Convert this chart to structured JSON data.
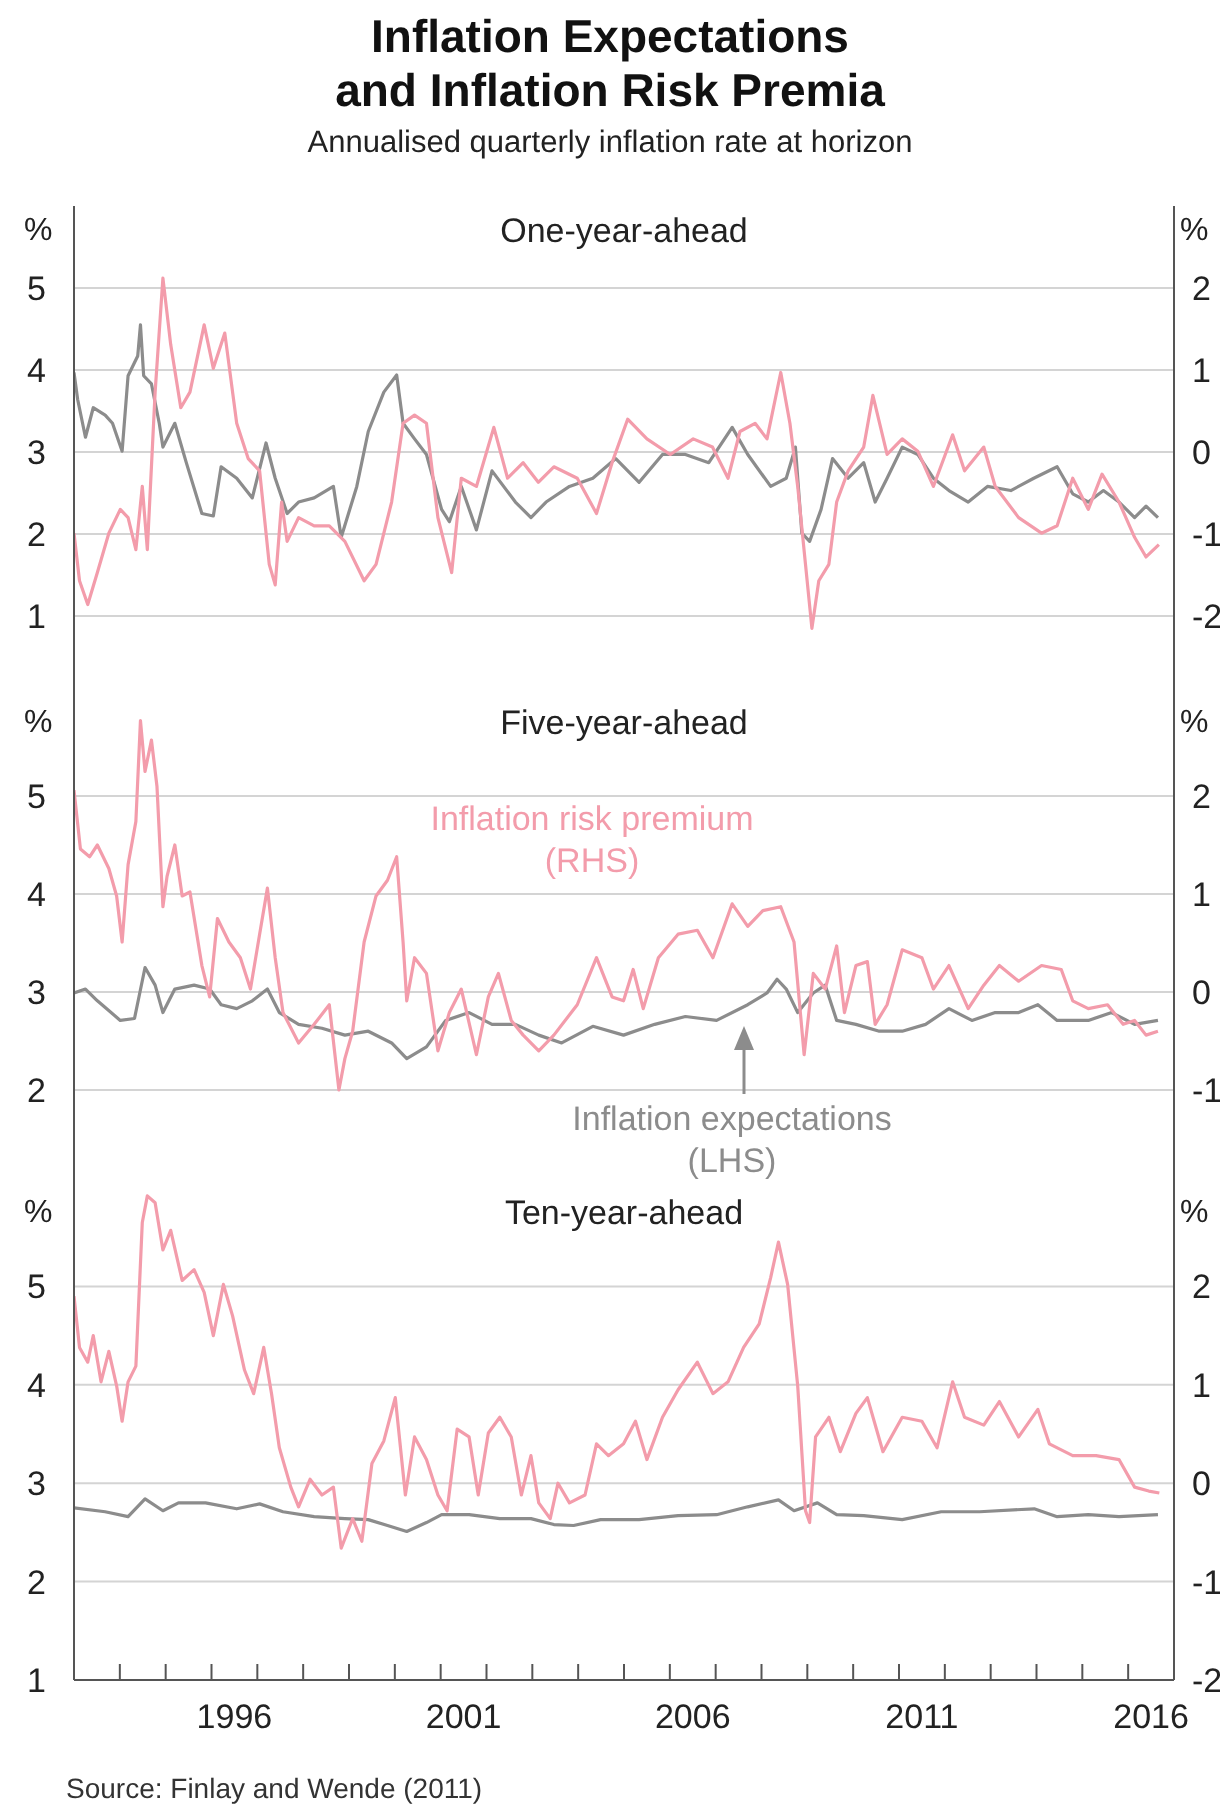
{
  "chart_data": [
    {
      "type": "line",
      "title": "Inflation Expectations and Inflation Risk Premia",
      "subtitle": "Annualised quarterly inflation rate at horizon",
      "annotations": [
        "One-year-ahead"
      ],
      "ylabel": "%",
      "y2label": "%",
      "xlim": [
        1993,
        2017
      ],
      "ylim": [
        0,
        6
      ],
      "yticks": [
        1,
        2,
        3,
        4,
        5
      ],
      "y2lim": [
        -3,
        3
      ],
      "y2ticks": [
        -2,
        -1,
        0,
        1,
        2
      ],
      "grid": "y",
      "tick_labels": "y",
      "series": [
        {
          "color": "#8c8c8c",
          "axis": "y",
          "x": [
            1993.0,
            1993.08,
            1993.25,
            1993.42,
            1993.68,
            1993.84,
            1994.05,
            1994.18,
            1994.39,
            1994.45,
            1994.52,
            1994.69,
            1994.86,
            1994.94,
            1995.2,
            1995.45,
            1995.79,
            1996.04,
            1996.21,
            1996.55,
            1996.89,
            1997.19,
            1997.39,
            1997.65,
            1997.9,
            1998.24,
            1998.66,
            1998.83,
            1999.17,
            1999.42,
            1999.76,
            2000.04,
            2000.18,
            2000.43,
            2000.69,
            2001.02,
            2001.19,
            2001.45,
            2001.78,
            2002.12,
            2002.63,
            2002.97,
            2003.3,
            2003.81,
            2004.32,
            2004.82,
            2005.33,
            2005.84,
            2006.34,
            2006.85,
            2007.36,
            2007.7,
            2008.2,
            2008.54,
            2008.74,
            2008.88,
            2009.05,
            2009.3,
            2009.55,
            2009.89,
            2010.23,
            2010.48,
            2010.74,
            2011.07,
            2011.41,
            2011.75,
            2012.09,
            2012.51,
            2012.93,
            2013.44,
            2013.94,
            2014.45,
            2014.79,
            2015.13,
            2015.46,
            2015.8,
            2016.14,
            2016.39,
            2016.65
          ],
          "values": [
            3.97,
            3.64,
            3.18,
            3.54,
            3.45,
            3.35,
            3.01,
            3.93,
            4.17,
            4.55,
            3.93,
            3.83,
            3.35,
            3.06,
            3.35,
            2.87,
            2.25,
            2.22,
            2.82,
            2.68,
            2.44,
            3.11,
            2.68,
            2.25,
            2.39,
            2.44,
            2.58,
            1.96,
            2.58,
            3.25,
            3.73,
            3.94,
            3.35,
            3.16,
            2.97,
            2.3,
            2.15,
            2.58,
            2.05,
            2.77,
            2.39,
            2.2,
            2.39,
            2.58,
            2.68,
            2.92,
            2.63,
            2.97,
            2.97,
            2.87,
            3.3,
            2.97,
            2.58,
            2.68,
            3.06,
            2.01,
            1.91,
            2.3,
            2.92,
            2.68,
            2.87,
            2.39,
            2.68,
            3.06,
            2.97,
            2.68,
            2.53,
            2.39,
            2.58,
            2.53,
            2.68,
            2.82,
            2.49,
            2.39,
            2.53,
            2.39,
            2.2,
            2.34,
            2.2
          ]
        },
        {
          "color": "#f39cab",
          "axis": "y2",
          "x": [
            1993.0,
            1993.12,
            1993.3,
            1993.51,
            1993.76,
            1994.01,
            1994.18,
            1994.35,
            1994.49,
            1994.6,
            1994.77,
            1994.94,
            1995.11,
            1995.33,
            1995.53,
            1995.84,
            1996.04,
            1996.29,
            1996.55,
            1996.8,
            1997.05,
            1997.26,
            1997.39,
            1997.53,
            1997.65,
            1997.9,
            1998.24,
            1998.57,
            1998.91,
            1999.33,
            1999.59,
            1999.93,
            2000.18,
            2000.43,
            2000.69,
            2000.94,
            2001.24,
            2001.45,
            2001.78,
            2002.16,
            2002.46,
            2002.8,
            2003.13,
            2003.47,
            2003.98,
            2004.4,
            2004.74,
            2005.08,
            2005.5,
            2006.01,
            2006.51,
            2006.93,
            2007.27,
            2007.53,
            2007.86,
            2008.12,
            2008.42,
            2008.62,
            2008.79,
            2008.96,
            2009.1,
            2009.25,
            2009.47,
            2009.64,
            2009.89,
            2010.23,
            2010.43,
            2010.74,
            2011.07,
            2011.41,
            2011.75,
            2012.17,
            2012.43,
            2012.85,
            2013.1,
            2013.61,
            2014.11,
            2014.45,
            2014.79,
            2015.13,
            2015.43,
            2015.8,
            2016.14,
            2016.39,
            2016.67
          ],
          "values": [
            -0.99,
            -1.57,
            -1.86,
            -1.47,
            -0.99,
            -0.7,
            -0.8,
            -1.19,
            -0.42,
            -1.19,
            0.73,
            2.12,
            1.31,
            0.54,
            0.73,
            1.55,
            1.02,
            1.45,
            0.35,
            -0.08,
            -0.23,
            -1.37,
            -1.62,
            -0.61,
            -1.09,
            -0.8,
            -0.9,
            -0.9,
            -1.09,
            -1.57,
            -1.37,
            -0.61,
            0.35,
            0.45,
            0.35,
            -0.8,
            -1.47,
            -0.32,
            -0.42,
            0.3,
            -0.32,
            -0.13,
            -0.37,
            -0.18,
            -0.32,
            -0.75,
            -0.13,
            0.4,
            0.16,
            -0.03,
            0.16,
            0.06,
            -0.32,
            0.25,
            0.35,
            0.16,
            0.97,
            0.35,
            -0.42,
            -1.37,
            -2.15,
            -1.57,
            -1.37,
            -0.61,
            -0.23,
            0.06,
            0.69,
            -0.03,
            0.16,
            0.01,
            -0.42,
            0.21,
            -0.23,
            0.06,
            -0.42,
            -0.8,
            -0.99,
            -0.9,
            -0.32,
            -0.7,
            -0.27,
            -0.61,
            -1.04,
            -1.28,
            -1.13
          ]
        }
      ]
    },
    {
      "type": "line",
      "annotations": [
        "Five-year-ahead"
      ],
      "ylabel": "%",
      "y2label": "%",
      "xlim": [
        1993,
        2017
      ],
      "ylim": [
        1,
        6
      ],
      "yticks": [
        2,
        3,
        4,
        5
      ],
      "y2lim": [
        -2,
        3
      ],
      "y2ticks": [
        -1,
        0,
        1,
        2
      ],
      "grid": "y",
      "tick_labels": "y",
      "series": [
        {
          "name": "Inflation expectations (LHS)",
          "color": "#8c8c8c",
          "axis": "y",
          "x": [
            1993.0,
            1993.25,
            1993.51,
            1994.01,
            1994.32,
            1994.55,
            1994.77,
            1994.94,
            1995.2,
            1995.62,
            1995.96,
            1996.21,
            1996.55,
            1996.89,
            1997.22,
            1997.48,
            1997.9,
            1998.41,
            1998.91,
            1999.42,
            1999.93,
            2000.26,
            2000.69,
            2001.11,
            2001.62,
            2002.12,
            2002.63,
            2003.14,
            2003.64,
            2004.32,
            2004.99,
            2005.67,
            2006.34,
            2007.02,
            2007.7,
            2008.12,
            2008.34,
            2008.54,
            2008.79,
            2009.13,
            2009.39,
            2009.64,
            2010.06,
            2010.57,
            2011.07,
            2011.58,
            2012.09,
            2012.59,
            2013.1,
            2013.61,
            2014.03,
            2014.45,
            2015.13,
            2015.64,
            2016.14,
            2016.65
          ],
          "values": [
            2.99,
            3.03,
            2.91,
            2.71,
            2.73,
            3.25,
            3.07,
            2.79,
            3.03,
            3.07,
            3.03,
            2.87,
            2.83,
            2.91,
            3.03,
            2.79,
            2.67,
            2.63,
            2.56,
            2.6,
            2.48,
            2.32,
            2.44,
            2.71,
            2.79,
            2.67,
            2.67,
            2.56,
            2.48,
            2.65,
            2.56,
            2.67,
            2.75,
            2.71,
            2.87,
            2.99,
            3.13,
            3.03,
            2.79,
            2.99,
            3.07,
            2.71,
            2.67,
            2.6,
            2.6,
            2.67,
            2.83,
            2.71,
            2.79,
            2.79,
            2.87,
            2.71,
            2.71,
            2.79,
            2.67,
            2.71
          ]
        },
        {
          "name": "Inflation risk premium (RHS)",
          "color": "#f39cab",
          "axis": "y2",
          "x": [
            1993.0,
            1993.14,
            1993.34,
            1993.51,
            1993.76,
            1993.93,
            1994.05,
            1994.18,
            1994.35,
            1994.45,
            1994.55,
            1994.69,
            1994.81,
            1994.94,
            1995.03,
            1995.2,
            1995.36,
            1995.53,
            1995.79,
            1995.96,
            1996.13,
            1996.38,
            1996.63,
            1996.85,
            1997.05,
            1997.22,
            1997.39,
            1997.56,
            1997.9,
            1998.24,
            1998.57,
            1998.78,
            1998.91,
            1999.08,
            1999.33,
            1999.59,
            1999.84,
            2000.04,
            2000.18,
            2000.26,
            2000.43,
            2000.69,
            2000.94,
            2001.19,
            2001.45,
            2001.78,
            2002.04,
            2002.26,
            2002.54,
            2002.8,
            2003.14,
            2003.47,
            2003.98,
            2004.4,
            2004.74,
            2004.99,
            2005.2,
            2005.42,
            2005.75,
            2006.18,
            2006.6,
            2006.94,
            2007.36,
            2007.7,
            2008.03,
            2008.42,
            2008.71,
            2008.93,
            2009.13,
            2009.39,
            2009.64,
            2009.81,
            2010.06,
            2010.31,
            2010.48,
            2010.74,
            2011.07,
            2011.5,
            2011.75,
            2012.09,
            2012.51,
            2012.85,
            2013.19,
            2013.61,
            2014.11,
            2014.54,
            2014.79,
            2015.13,
            2015.55,
            2015.89,
            2016.14,
            2016.39,
            2016.65
          ],
          "values": [
            2.06,
            1.46,
            1.38,
            1.5,
            1.26,
            0.98,
            0.51,
            1.3,
            1.74,
            2.77,
            2.25,
            2.57,
            2.1,
            0.87,
            1.18,
            1.5,
            0.98,
            1.02,
            0.27,
            -0.05,
            0.75,
            0.51,
            0.35,
            0.03,
            0.59,
            1.06,
            0.35,
            -0.21,
            -0.52,
            -0.33,
            -0.13,
            -1.0,
            -0.68,
            -0.4,
            0.51,
            0.98,
            1.14,
            1.38,
            0.51,
            -0.09,
            0.35,
            0.19,
            -0.6,
            -0.21,
            0.03,
            -0.64,
            -0.05,
            0.19,
            -0.29,
            -0.44,
            -0.6,
            -0.44,
            -0.13,
            0.35,
            -0.05,
            -0.09,
            0.23,
            -0.17,
            0.35,
            0.59,
            0.63,
            0.35,
            0.9,
            0.67,
            0.83,
            0.87,
            0.51,
            -0.64,
            0.19,
            0.03,
            0.47,
            -0.21,
            0.27,
            0.31,
            -0.33,
            -0.13,
            0.43,
            0.35,
            0.03,
            0.27,
            -0.17,
            0.07,
            0.27,
            0.11,
            0.27,
            0.23,
            -0.09,
            -0.17,
            -0.13,
            -0.33,
            -0.29,
            -0.44,
            -0.4
          ]
        }
      ]
    },
    {
      "type": "line",
      "annotations": [
        "Ten-year-ahead",
        "Source: Finlay and Wende (2011)"
      ],
      "ylabel": "%",
      "y2label": "%",
      "xlim": [
        1993,
        2017
      ],
      "xticks": [
        {
          "value": 1994,
          "label": null
        },
        {
          "value": 1995,
          "label": null
        },
        {
          "value": 1996,
          "label": null
        },
        {
          "value": 1996.5,
          "label": "1996"
        },
        {
          "value": 1997,
          "label": null
        },
        {
          "value": 1998,
          "label": null
        },
        {
          "value": 1999,
          "label": null
        },
        {
          "value": 2000,
          "label": null
        },
        {
          "value": 2001,
          "label": null
        },
        {
          "value": 2001.5,
          "label": "2001"
        },
        {
          "value": 2002,
          "label": null
        },
        {
          "value": 2003,
          "label": null
        },
        {
          "value": 2004,
          "label": null
        },
        {
          "value": 2005,
          "label": null
        },
        {
          "value": 2006,
          "label": null
        },
        {
          "value": 2006.5,
          "label": "2006"
        },
        {
          "value": 2007,
          "label": null
        },
        {
          "value": 2008,
          "label": null
        },
        {
          "value": 2009,
          "label": null
        },
        {
          "value": 2010,
          "label": null
        },
        {
          "value": 2011,
          "label": null
        },
        {
          "value": 2011.5,
          "label": "2011"
        },
        {
          "value": 2012,
          "label": null
        },
        {
          "value": 2013,
          "label": null
        },
        {
          "value": 2014,
          "label": null
        },
        {
          "value": 2015,
          "label": null
        },
        {
          "value": 2016,
          "label": null
        },
        {
          "value": 2016.5,
          "label": "2016"
        }
      ],
      "ylim": [
        1,
        6
      ],
      "yticks": [
        1,
        2,
        3,
        4,
        5
      ],
      "y2lim": [
        -2,
        3
      ],
      "y2ticks": [
        -2,
        -1,
        0,
        1,
        2
      ],
      "grid": "y",
      "series": [
        {
          "color": "#8c8c8c",
          "axis": "y",
          "x": [
            1993.0,
            1993.68,
            1994.18,
            1994.55,
            1994.94,
            1995.28,
            1995.87,
            1996.55,
            1997.05,
            1997.56,
            1998.24,
            1998.91,
            1999.42,
            1999.84,
            2000.26,
            2000.69,
            2001.02,
            2001.62,
            2002.29,
            2002.97,
            2003.47,
            2003.9,
            2004.49,
            2005.33,
            2006.18,
            2007.02,
            2007.7,
            2008.37,
            2008.71,
            2009.22,
            2009.64,
            2010.23,
            2011.07,
            2011.92,
            2012.76,
            2013.95,
            2014.45,
            2015.13,
            2015.8,
            2016.65
          ],
          "values": [
            2.75,
            2.71,
            2.66,
            2.84,
            2.72,
            2.8,
            2.8,
            2.74,
            2.79,
            2.71,
            2.66,
            2.64,
            2.63,
            2.57,
            2.51,
            2.6,
            2.68,
            2.68,
            2.64,
            2.64,
            2.58,
            2.57,
            2.63,
            2.63,
            2.67,
            2.68,
            2.76,
            2.83,
            2.72,
            2.8,
            2.68,
            2.67,
            2.63,
            2.71,
            2.71,
            2.74,
            2.66,
            2.68,
            2.66,
            2.68
          ]
        },
        {
          "color": "#f39cab",
          "axis": "y2",
          "x": [
            1993.0,
            1993.12,
            1993.3,
            1993.42,
            1993.59,
            1993.76,
            1993.93,
            1994.05,
            1994.18,
            1994.35,
            1994.49,
            1994.6,
            1994.77,
            1994.94,
            1995.11,
            1995.36,
            1995.62,
            1995.84,
            1996.04,
            1996.26,
            1996.46,
            1996.72,
            1996.92,
            1997.14,
            1997.31,
            1997.48,
            1997.73,
            1997.9,
            1998.15,
            1998.41,
            1998.66,
            1998.83,
            1999.08,
            1999.28,
            1999.5,
            1999.76,
            2000.01,
            2000.23,
            2000.43,
            2000.69,
            2000.94,
            2001.14,
            2001.36,
            2001.62,
            2001.82,
            2002.04,
            2002.29,
            2002.54,
            2002.76,
            2002.97,
            2003.14,
            2003.39,
            2003.56,
            2003.81,
            2004.15,
            2004.4,
            2004.66,
            2004.99,
            2005.25,
            2005.5,
            2005.84,
            2006.18,
            2006.6,
            2006.94,
            2007.27,
            2007.61,
            2007.95,
            2008.2,
            2008.37,
            2008.57,
            2008.79,
            2008.96,
            2009.05,
            2009.18,
            2009.47,
            2009.72,
            2010.06,
            2010.31,
            2010.65,
            2011.07,
            2011.5,
            2011.83,
            2012.17,
            2012.43,
            2012.85,
            2013.19,
            2013.61,
            2014.03,
            2014.28,
            2014.79,
            2015.3,
            2015.8,
            2016.14,
            2016.45,
            2016.68
          ],
          "values": [
            1.9,
            1.38,
            1.23,
            1.5,
            1.03,
            1.34,
            0.99,
            0.63,
            1.03,
            1.19,
            2.65,
            2.92,
            2.85,
            2.37,
            2.57,
            2.06,
            2.17,
            1.94,
            1.5,
            2.02,
            1.7,
            1.15,
            0.91,
            1.38,
            0.91,
            0.36,
            -0.04,
            -0.24,
            0.04,
            -0.12,
            -0.04,
            -0.66,
            -0.36,
            -0.59,
            0.2,
            0.43,
            0.87,
            -0.12,
            0.47,
            0.24,
            -0.12,
            -0.28,
            0.55,
            0.47,
            -0.12,
            0.51,
            0.67,
            0.47,
            -0.12,
            0.28,
            -0.2,
            -0.36,
            0.0,
            -0.2,
            -0.12,
            0.4,
            0.28,
            0.4,
            0.63,
            0.24,
            0.67,
            0.95,
            1.23,
            0.91,
            1.03,
            1.38,
            1.62,
            2.09,
            2.45,
            2.02,
            0.99,
            -0.28,
            -0.4,
            0.47,
            0.67,
            0.32,
            0.71,
            0.87,
            0.32,
            0.67,
            0.63,
            0.36,
            1.03,
            0.67,
            0.59,
            0.83,
            0.47,
            0.75,
            0.4,
            0.28,
            0.28,
            0.24,
            -0.04,
            -0.08,
            -0.1
          ]
        }
      ]
    }
  ]
}
